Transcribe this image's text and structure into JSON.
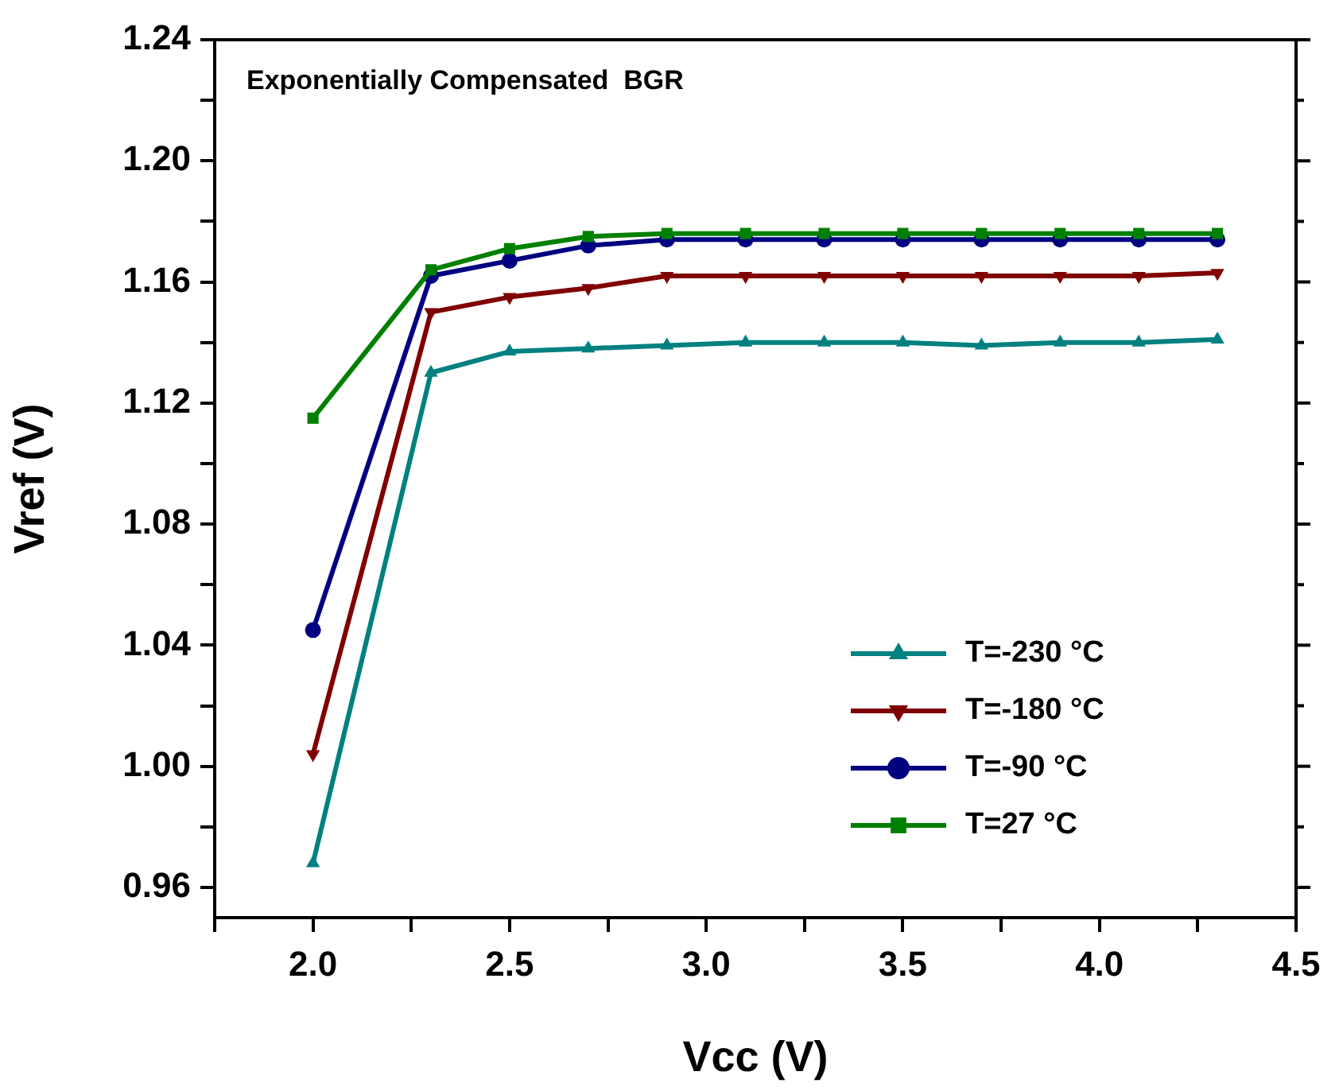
{
  "chart_data": {
    "type": "line",
    "title": "Exponentially Compensated  BGR",
    "xlabel": "Vcc (V)",
    "ylabel": "Vref (V)",
    "x": [
      2.0,
      2.3,
      2.5,
      2.7,
      2.9,
      3.1,
      3.3,
      3.5,
      3.7,
      3.9,
      4.1,
      4.3
    ],
    "series": [
      {
        "name": "T=-230 °C",
        "color": "#008080",
        "marker": "triangle",
        "values": [
          0.968,
          1.13,
          1.137,
          1.138,
          1.139,
          1.14,
          1.14,
          1.14,
          1.139,
          1.14,
          1.14,
          1.141
        ]
      },
      {
        "name": "T=-180 °C",
        "color": "#800000",
        "marker": "triangle-down",
        "values": [
          1.004,
          1.15,
          1.155,
          1.158,
          1.162,
          1.162,
          1.162,
          1.162,
          1.162,
          1.162,
          1.162,
          1.163
        ]
      },
      {
        "name": "T=-90 °C",
        "color": "#000080",
        "marker": "circle",
        "values": [
          1.045,
          1.162,
          1.167,
          1.172,
          1.174,
          1.174,
          1.174,
          1.174,
          1.174,
          1.174,
          1.174,
          1.174
        ]
      },
      {
        "name": "T=27 °C",
        "color": "#008000",
        "marker": "square",
        "values": [
          1.115,
          1.164,
          1.171,
          1.175,
          1.176,
          1.176,
          1.176,
          1.176,
          1.176,
          1.176,
          1.176,
          1.176
        ]
      }
    ],
    "xlim": [
      1.75,
      4.5
    ],
    "xticks": [
      {
        "value": 1.75,
        "label": null
      },
      {
        "value": 2.0,
        "label": "2.0"
      },
      {
        "value": 2.25,
        "label": null
      },
      {
        "value": 2.5,
        "label": "2.5"
      },
      {
        "value": 2.75,
        "label": null
      },
      {
        "value": 3.0,
        "label": "3.0"
      },
      {
        "value": 3.25,
        "label": null
      },
      {
        "value": 3.5,
        "label": "3.5"
      },
      {
        "value": 3.75,
        "label": null
      },
      {
        "value": 4.0,
        "label": "4.0"
      },
      {
        "value": 4.25,
        "label": null
      },
      {
        "value": 4.5,
        "label": "4.5"
      }
    ],
    "ylim": [
      0.95,
      1.24
    ],
    "yticks": [
      {
        "value": 0.96,
        "label": "0.96"
      },
      {
        "value": 0.98,
        "label": null
      },
      {
        "value": 1.0,
        "label": "1.00"
      },
      {
        "value": 1.02,
        "label": null
      },
      {
        "value": 1.04,
        "label": "1.04"
      },
      {
        "value": 1.06,
        "label": null
      },
      {
        "value": 1.08,
        "label": "1.08"
      },
      {
        "value": 1.1,
        "label": null
      },
      {
        "value": 1.12,
        "label": "1.12"
      },
      {
        "value": 1.14,
        "label": null
      },
      {
        "value": 1.16,
        "label": "1.16"
      },
      {
        "value": 1.18,
        "label": null
      },
      {
        "value": 1.2,
        "label": "1.20"
      },
      {
        "value": 1.22,
        "label": null
      },
      {
        "value": 1.24,
        "label": "1.24"
      }
    ],
    "grid": false,
    "legend": "bottom right",
    "line_style": "solid"
  }
}
